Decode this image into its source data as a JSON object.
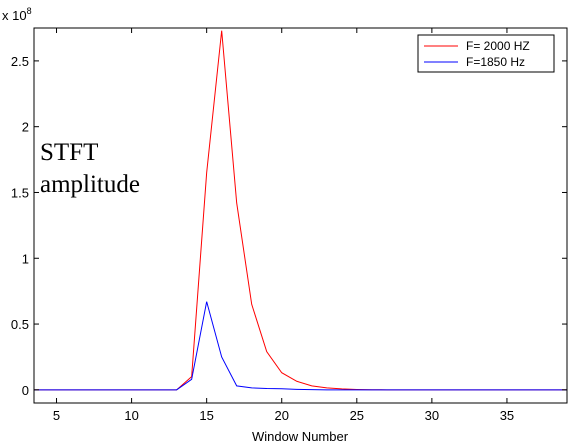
{
  "chart_data": {
    "type": "line",
    "xlabel": "Window Number",
    "ylabel": "",
    "exponent_label": "x 10",
    "exponent_power": "8",
    "annotation": [
      "STFT",
      "amplitude"
    ],
    "xlim": [
      3.5,
      39
    ],
    "ylim": [
      -0.1,
      2.75
    ],
    "xticks": [
      5,
      10,
      15,
      20,
      25,
      30,
      35
    ],
    "yticks": [
      0,
      0.5,
      1,
      1.5,
      2,
      2.5
    ],
    "legend_position": "top-right",
    "x": [
      3,
      4,
      5,
      6,
      7,
      8,
      9,
      10,
      11,
      12,
      13,
      14,
      15,
      16,
      17,
      18,
      19,
      20,
      21,
      22,
      23,
      24,
      25,
      26,
      27,
      28,
      29,
      30,
      31,
      32,
      33,
      34,
      35,
      36,
      37,
      38,
      39
    ],
    "series": [
      {
        "name": "F= 2000 HZ",
        "color": "#ff0000",
        "values": [
          0,
          0,
          0,
          0,
          0,
          0,
          0,
          0,
          0,
          0,
          0,
          0.1,
          1.65,
          2.73,
          1.42,
          0.65,
          0.29,
          0.13,
          0.065,
          0.03,
          0.015,
          0.007,
          0.003,
          0.001,
          0,
          0,
          0,
          0,
          0,
          0,
          0,
          0,
          0,
          0,
          0,
          0,
          0
        ]
      },
      {
        "name": "F=1850 Hz",
        "color": "#0000ff",
        "values": [
          0,
          0,
          0,
          0,
          0,
          0,
          0,
          0,
          0,
          0,
          0,
          0.08,
          0.67,
          0.25,
          0.03,
          0.015,
          0.01,
          0.008,
          0.004,
          0.002,
          0,
          0,
          0,
          0,
          0,
          0,
          0,
          0,
          0,
          0,
          0,
          0,
          0,
          0,
          0,
          0,
          0
        ]
      }
    ]
  }
}
